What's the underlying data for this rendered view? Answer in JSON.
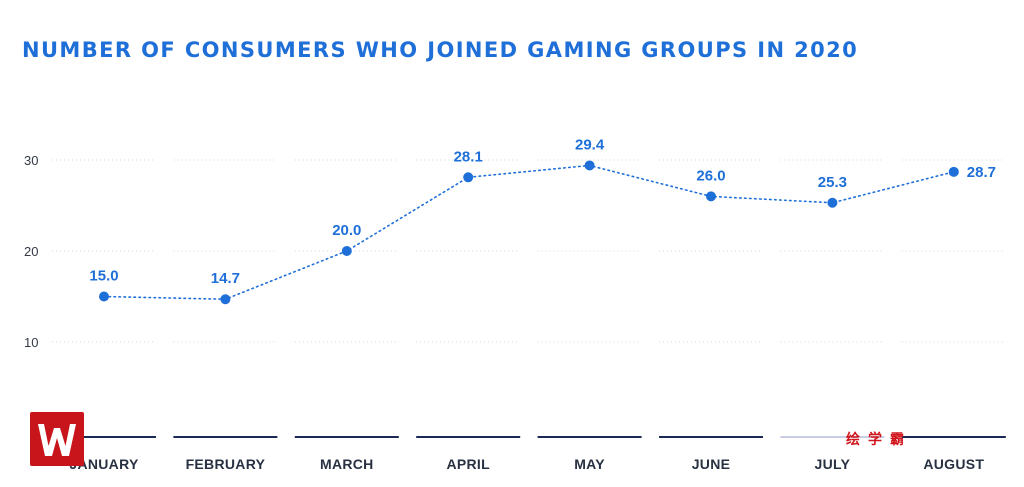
{
  "page_title": "NUMBER OF CONSUMERS WHO JOINED GAMING GROUPS IN 2020",
  "chart_data": {
    "type": "line",
    "title": "NUMBER OF CONSUMERS WHO JOINED GAMING GROUPS IN 2020",
    "xlabel": "",
    "ylabel": "",
    "categories": [
      "JANUARY",
      "FEBRUARY",
      "MARCH",
      "APRIL",
      "MAY",
      "JUNE",
      "JULY",
      "AUGUST"
    ],
    "values": [
      15.0,
      14.7,
      20.0,
      28.1,
      29.4,
      26.0,
      25.3,
      28.7
    ],
    "data_labels": [
      "15.0",
      "14.7",
      "20.0",
      "28.1",
      "29.4",
      "26.0",
      "25.3",
      "28.7"
    ],
    "yticks": [
      "10",
      "20",
      "30"
    ],
    "ylim": [
      0,
      30
    ],
    "grid": "dotted horizontal",
    "legend": "none",
    "colors": {
      "title": "#1f6fd8",
      "line": "#1f6fd8",
      "points": "#1f6fd8",
      "labels": "#1f6fd8",
      "baseline": "#1b2a55",
      "grid": "#cfd6e0",
      "axis_text": "#283142"
    }
  },
  "watermark": {
    "text": "绘学霸",
    "logo_icon": "w-logo-icon"
  }
}
